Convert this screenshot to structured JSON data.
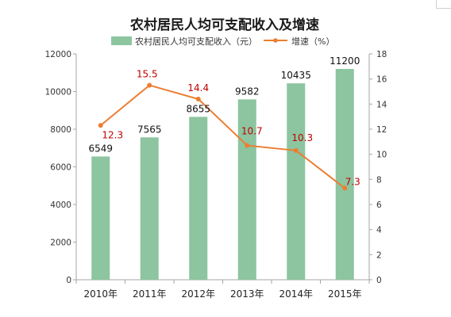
{
  "chart_data": {
    "type": "bar+line",
    "title": "农村居民人均可支配收入及增速",
    "categories": [
      "2010年",
      "2011年",
      "2012年",
      "2013年",
      "2014年",
      "2015年"
    ],
    "series": [
      {
        "name": "农村居民人均可支配收入（元）",
        "type": "bar",
        "axis": "left",
        "values": [
          6549,
          7565,
          8655,
          9582,
          10435,
          11200
        ],
        "color": "#8cc5a0"
      },
      {
        "name": "增速（%）",
        "type": "line",
        "axis": "right",
        "values": [
          12.3,
          15.5,
          14.4,
          10.7,
          10.3,
          7.3
        ],
        "color": "#ed7d31"
      }
    ],
    "y_left": {
      "range": [
        0,
        12000
      ],
      "ticks": [
        "0",
        "2000",
        "4000",
        "6000",
        "8000",
        "10000",
        "12000"
      ]
    },
    "y_right": {
      "range": [
        0,
        18
      ],
      "ticks": [
        "0",
        "2",
        "4",
        "6",
        "8",
        "10",
        "12",
        "14",
        "16",
        "18"
      ]
    },
    "legend_position": "top",
    "grid": false
  }
}
